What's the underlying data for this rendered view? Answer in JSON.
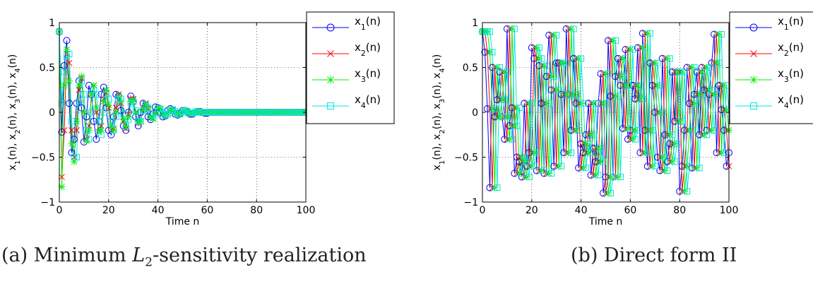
{
  "chart_data": [
    {
      "type": "line",
      "caption_prefix": "(a) Minimum ",
      "caption_symbol": "L",
      "caption_subscript": "2",
      "caption_suffix": "-sensitivity realization",
      "xlabel": "Time n",
      "ylabel": "x_1(n), x_2(n), x_3(n), x_4(n)",
      "xlim": [
        0,
        100
      ],
      "ylim": [
        -1,
        1
      ],
      "xticks": [
        0,
        20,
        40,
        60,
        80,
        100
      ],
      "yticks": [
        -1,
        -0.5,
        0,
        0.5,
        1
      ],
      "xtick_labels": [
        "0",
        "20",
        "40",
        "60",
        "80",
        "100"
      ],
      "ytick_labels": [
        "−1",
        "−0.5",
        "0",
        "0.5",
        "1"
      ],
      "grid": true,
      "legend_position": "right",
      "x": [
        0,
        1,
        2,
        3,
        4,
        5,
        6,
        7,
        8,
        9,
        10,
        11,
        12,
        13,
        14,
        15,
        16,
        17,
        18,
        19,
        20,
        21,
        22,
        23,
        24,
        25,
        26,
        27,
        28,
        29,
        30,
        31,
        32,
        33,
        34,
        35,
        36,
        37,
        38,
        39,
        40,
        41,
        42,
        43,
        44,
        45,
        46,
        47,
        48,
        49,
        50,
        51,
        52,
        53,
        54,
        55,
        56,
        57,
        58,
        59,
        60,
        61,
        62,
        63,
        64,
        65,
        66,
        67,
        68,
        69,
        70,
        71,
        72,
        73,
        74,
        75,
        76,
        77,
        78,
        79,
        80,
        81,
        82,
        83,
        84,
        85,
        86,
        87,
        88,
        89,
        90,
        91,
        92,
        93,
        94,
        95,
        96,
        97,
        98,
        99,
        100
      ],
      "series": [
        {
          "name": "x_1(n)",
          "color": "#0000ff",
          "marker": "circle",
          "values": [
            0.9,
            -0.22,
            0.52,
            0.8,
            0.1,
            -0.45,
            -0.3,
            0.1,
            0.35,
            0.05,
            -0.33,
            -0.05,
            0.3,
            0.2,
            -0.1,
            -0.3,
            -0.1,
            0.2,
            0.28,
            0.05,
            -0.2,
            -0.25,
            -0.05,
            0.2,
            0.18,
            0.02,
            -0.15,
            -0.2,
            0.0,
            0.18,
            0.12,
            -0.05,
            -0.15,
            0.0,
            0.1,
            0.08,
            -0.05,
            -0.08,
            -0.02,
            0.06,
            0.05,
            0.0,
            -0.05,
            -0.04,
            0.02,
            0.04,
            0.02,
            -0.02,
            -0.03,
            -0.01,
            0.02,
            0.02,
            0.0,
            -0.02,
            -0.02,
            0.0,
            0.01,
            0.01,
            0.0,
            -0.01,
            -0.01,
            0.0,
            0.0,
            0.0,
            0.0,
            0.0,
            0.0,
            0.0,
            0.0,
            0.0,
            0.0,
            0.0,
            0.0,
            0.0,
            0.0,
            0.0,
            0.0,
            0.0,
            0.0,
            0.0,
            0.0,
            0.0,
            0.0,
            0.0,
            0.0,
            0.0,
            0.0,
            0.0,
            0.0,
            0.0,
            0.0,
            0.0,
            0.0,
            0.0,
            0.0,
            0.0,
            0.0,
            0.0,
            0.0,
            0.0,
            0.0
          ]
        },
        {
          "name": "x_2(n)",
          "color": "#ff0000",
          "marker": "x",
          "values": [
            0.9,
            -0.72,
            -0.2,
            0.65,
            0.55,
            -0.2,
            -0.5,
            -0.2,
            0.25,
            0.38,
            0.0,
            -0.3,
            -0.15,
            0.2,
            0.3,
            0.0,
            -0.22,
            -0.15,
            0.15,
            0.22,
            0.05,
            -0.2,
            -0.18,
            0.05,
            0.2,
            0.1,
            -0.1,
            -0.18,
            -0.02,
            0.15,
            0.15,
            0.0,
            -0.12,
            -0.1,
            0.05,
            0.1,
            0.04,
            -0.06,
            -0.07,
            0.0,
            0.05,
            0.04,
            -0.02,
            -0.04,
            -0.01,
            0.03,
            0.03,
            0.0,
            -0.02,
            -0.02,
            0.01,
            0.02,
            0.01,
            -0.01,
            -0.01,
            0.0,
            0.01,
            0.0,
            0.0,
            0.0,
            0.0,
            0.0,
            0.0,
            0.0,
            0.0,
            0.0,
            0.0,
            0.0,
            0.0,
            0.0,
            0.0,
            0.0,
            0.0,
            0.0,
            0.0,
            0.0,
            0.0,
            0.0,
            0.0,
            0.0,
            0.0,
            0.0,
            0.0,
            0.0,
            0.0,
            0.0,
            0.0,
            0.0,
            0.0,
            0.0,
            0.0,
            0.0,
            0.0,
            0.0,
            0.0,
            0.0,
            0.0,
            0.0,
            0.0,
            0.0,
            0.0
          ]
        },
        {
          "name": "x_3(n)",
          "color": "#00ee00",
          "marker": "star",
          "values": [
            0.9,
            -0.83,
            0.3,
            0.7,
            0.35,
            -0.35,
            -0.55,
            -0.1,
            0.3,
            0.4,
            0.0,
            -0.32,
            -0.2,
            0.2,
            0.3,
            0.05,
            -0.22,
            -0.2,
            0.12,
            0.25,
            0.08,
            -0.15,
            -0.2,
            0.0,
            0.18,
            0.12,
            -0.08,
            -0.16,
            -0.05,
            0.12,
            0.14,
            0.0,
            -0.1,
            -0.1,
            0.03,
            0.09,
            0.05,
            -0.05,
            -0.07,
            -0.01,
            0.05,
            0.04,
            -0.02,
            -0.04,
            -0.01,
            0.03,
            0.03,
            0.0,
            -0.02,
            -0.02,
            0.01,
            0.02,
            0.01,
            -0.01,
            -0.01,
            0.0,
            0.01,
            0.0,
            0.0,
            0.0,
            0.0,
            0.0,
            0.0,
            0.0,
            0.0,
            0.0,
            0.0,
            0.0,
            0.0,
            0.0,
            0.0,
            0.0,
            0.0,
            0.0,
            0.0,
            0.0,
            0.0,
            0.0,
            0.0,
            0.0,
            0.0,
            0.0,
            0.0,
            0.0,
            0.0,
            0.0,
            0.0,
            0.0,
            0.0,
            0.0,
            0.0,
            0.0,
            0.0,
            0.0,
            0.0,
            0.0,
            0.0,
            0.0,
            0.0,
            0.0,
            0.0
          ]
        },
        {
          "name": "x_4(n)",
          "color": "#00e5e5",
          "marker": "square",
          "values": [
            0.9,
            0.1,
            0.45,
            0.62,
            0.65,
            -0.1,
            -0.5,
            -0.5,
            0.1,
            0.35,
            0.2,
            -0.2,
            -0.3,
            0.0,
            0.25,
            0.2,
            -0.1,
            -0.25,
            0.0,
            0.2,
            0.15,
            -0.1,
            -0.2,
            -0.05,
            0.15,
            0.15,
            -0.02,
            -0.15,
            -0.08,
            0.1,
            0.12,
            0.02,
            -0.1,
            -0.1,
            0.02,
            0.08,
            0.05,
            -0.04,
            -0.06,
            -0.02,
            0.04,
            0.04,
            -0.01,
            -0.03,
            -0.02,
            0.02,
            0.03,
            0.01,
            -0.02,
            -0.02,
            0.0,
            0.02,
            0.01,
            -0.01,
            -0.01,
            0.0,
            0.01,
            0.0,
            0.0,
            0.0,
            0.0,
            0.0,
            0.0,
            0.0,
            0.0,
            0.0,
            0.0,
            0.0,
            0.0,
            0.0,
            0.0,
            0.0,
            0.0,
            0.0,
            0.0,
            0.0,
            0.0,
            0.0,
            0.0,
            0.0,
            0.0,
            0.0,
            0.0,
            0.0,
            0.0,
            0.0,
            0.0,
            0.0,
            0.0,
            0.0,
            0.0,
            0.0,
            0.0,
            0.0,
            0.0,
            0.0,
            0.0,
            0.0,
            0.0,
            0.0,
            0.0
          ]
        }
      ]
    },
    {
      "type": "line",
      "caption": "(b) Direct form II",
      "xlabel": "Time n",
      "ylabel": "x_1(n), x_2(n), x_3(n), x_4(n)",
      "xlim": [
        0,
        100
      ],
      "ylim": [
        -1,
        1
      ],
      "xticks": [
        0,
        20,
        40,
        60,
        80,
        100
      ],
      "yticks": [
        -1,
        -0.5,
        0,
        0.5,
        1
      ],
      "xtick_labels": [
        "0",
        "20",
        "40",
        "60",
        "80",
        "100"
      ],
      "ytick_labels": [
        "−1",
        "−0.5",
        "0",
        "0.5",
        "1"
      ],
      "grid": true,
      "legend_position": "right",
      "x": [
        0,
        1,
        2,
        3,
        4,
        5,
        6,
        7,
        8,
        9,
        10,
        11,
        12,
        13,
        14,
        15,
        16,
        17,
        18,
        19,
        20,
        21,
        22,
        23,
        24,
        25,
        26,
        27,
        28,
        29,
        30,
        31,
        32,
        33,
        34,
        35,
        36,
        37,
        38,
        39,
        40,
        41,
        42,
        43,
        44,
        45,
        46,
        47,
        48,
        49,
        50,
        51,
        52,
        53,
        54,
        55,
        56,
        57,
        58,
        59,
        60,
        61,
        62,
        63,
        64,
        65,
        66,
        67,
        68,
        69,
        70,
        71,
        72,
        73,
        74,
        75,
        76,
        77,
        78,
        79,
        80,
        81,
        82,
        83,
        84,
        85,
        86,
        87,
        88,
        89,
        90,
        91,
        92,
        93,
        94,
        95,
        96,
        97,
        98,
        99,
        100
      ],
      "base_values": [
        0.9,
        0.67,
        0.04,
        -0.84,
        0.5,
        -0.05,
        0.14,
        0.45,
        -0.05,
        -0.3,
        0.93,
        -0.15,
        0.05,
        -0.68,
        -0.5,
        -0.55,
        -0.72,
        0.1,
        -0.6,
        -0.45,
        0.72,
        0.6,
        -0.65,
        0.52,
        0.1,
        -0.68,
        0.4,
        0.86,
        0.25,
        -0.6,
        0.55,
        0.55,
        0.2,
        -0.45,
        0.93,
        0.2,
        -0.2,
        0.6,
        0.1,
        -0.62,
        -0.35,
        -0.45,
        -0.25,
        0.1,
        -0.7,
        -0.4,
        -0.55,
        0.1,
        0.43,
        -0.9,
        -0.72,
        0.8,
        0.18,
        -0.72,
        0.4,
        0.6,
        0.3,
        -0.18,
        0.7,
        -0.3,
        -0.2,
        0.3,
        0.15,
        0.72,
        -0.45,
        0.88,
        -0.2,
        -0.6,
        0.55,
        0.3,
        0.0,
        -0.5,
        -0.65,
        0.6,
        -0.25,
        -0.55,
        -0.35,
        0.45,
        -0.1,
        0.45,
        -0.88,
        -0.6,
        -0.2,
        0.5,
        0.1,
        -0.62,
        0.2,
        0.45,
        -0.25,
        0.5,
        0.25,
        -0.2,
        0.2,
        0.55,
        0.87,
        -0.45,
        0.3,
        0.03,
        -0.2,
        -0.6,
        -0.45
      ],
      "series": [
        {
          "name": "x_1(n)",
          "color": "#0000ff",
          "marker": "circle",
          "lag": 0
        },
        {
          "name": "x_2(n)",
          "color": "#ff0000",
          "marker": "x",
          "lag": 1
        },
        {
          "name": "x_3(n)",
          "color": "#00ee00",
          "marker": "star",
          "lag": 2
        },
        {
          "name": "x_4(n)",
          "color": "#00e5e5",
          "marker": "square",
          "lag": 3
        }
      ]
    }
  ]
}
